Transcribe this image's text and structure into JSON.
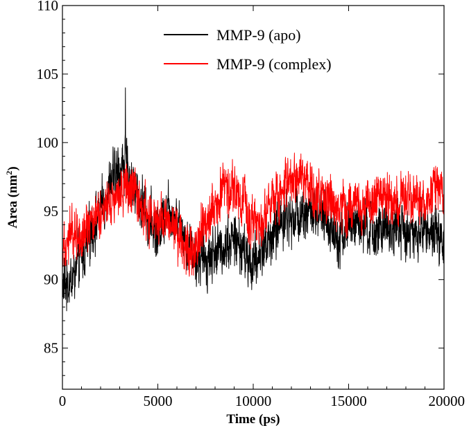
{
  "chart_data": {
    "type": "line",
    "xlabel": "Time (ps)",
    "ylabel": "Area (nm",
    "ylabel_sup": "2",
    "ylabel_close": ")",
    "xlim": [
      0,
      20000
    ],
    "ylim": [
      82,
      110
    ],
    "x_ticks": [
      0,
      5000,
      10000,
      15000,
      20000
    ],
    "x_tick_labels": [
      "0",
      "5000",
      "10000",
      "15000",
      "20000"
    ],
    "y_ticks": [
      85,
      90,
      95,
      100,
      105,
      110
    ],
    "y_tick_labels": [
      "85",
      "90",
      "95",
      "100",
      "105",
      "110"
    ],
    "grid": false,
    "legend_position": "top-center",
    "series": [
      {
        "name": "MMP-9 (apo)",
        "color": "#000000",
        "x": [
          0,
          500,
          1000,
          1500,
          2000,
          2500,
          3000,
          3300,
          3500,
          4000,
          4500,
          5000,
          5500,
          6000,
          6500,
          7000,
          7500,
          8000,
          8500,
          9000,
          9500,
          10000,
          10500,
          11000,
          11500,
          12000,
          12500,
          13000,
          13500,
          14000,
          14500,
          15000,
          15500,
          16000,
          16500,
          17000,
          17500,
          18000,
          18500,
          19000,
          19500,
          20000
        ],
        "y": [
          89.5,
          90.0,
          91.5,
          93.5,
          95.0,
          97.0,
          98.0,
          98.5,
          97.5,
          96.0,
          94.5,
          93.5,
          95.5,
          94.5,
          93.0,
          91.5,
          91.5,
          92.0,
          92.5,
          93.0,
          92.0,
          91.0,
          92.5,
          93.0,
          94.5,
          94.5,
          95.0,
          95.0,
          94.5,
          94.0,
          93.0,
          94.0,
          94.0,
          93.5,
          93.5,
          93.5,
          94.0,
          93.5,
          93.0,
          94.0,
          93.5,
          92.5
        ],
        "noise": 1.6,
        "spike": {
          "x": 3300,
          "y": 104
        }
      },
      {
        "name": "MMP-9 (complex)",
        "color": "#ff0000",
        "x": [
          0,
          500,
          1000,
          1500,
          2000,
          2500,
          3000,
          3500,
          4000,
          4500,
          5000,
          5500,
          6000,
          6500,
          7000,
          7500,
          8000,
          8500,
          9000,
          9500,
          10000,
          10500,
          11000,
          11500,
          12000,
          12500,
          13000,
          13500,
          14000,
          14500,
          15000,
          15500,
          16000,
          16500,
          17000,
          17500,
          18000,
          18500,
          19000,
          19500,
          20000
        ],
        "y": [
          92.5,
          93.5,
          93.5,
          94.5,
          95.0,
          96.0,
          96.5,
          96.5,
          95.5,
          94.5,
          94.0,
          94.5,
          93.5,
          92.5,
          92.0,
          94.5,
          95.5,
          97.0,
          96.5,
          95.5,
          94.0,
          94.5,
          96.0,
          96.5,
          97.0,
          97.5,
          96.5,
          96.0,
          95.5,
          95.5,
          95.5,
          95.5,
          95.5,
          96.0,
          96.0,
          95.5,
          96.0,
          96.0,
          95.5,
          96.5,
          96.5
        ],
        "noise": 1.5
      }
    ]
  }
}
